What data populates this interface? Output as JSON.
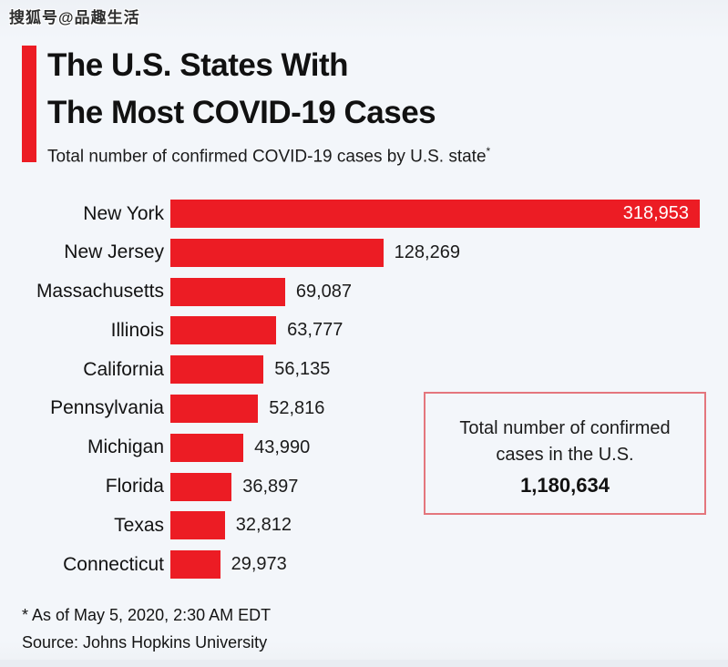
{
  "watermark": "搜狐号@品趣生活",
  "header": {
    "title_line1": "The U.S. States With",
    "title_line2": "The Most COVID-19 Cases",
    "subtitle": "Total number of confirmed COVID-19 cases by U.S. state",
    "subtitle_footnote_marker": "*"
  },
  "chart_data": {
    "type": "bar",
    "orientation": "horizontal",
    "title": "The U.S. States With The Most COVID-19 Cases",
    "subtitle": "Total number of confirmed COVID-19 cases by U.S. state*",
    "categories": [
      "New York",
      "New Jersey",
      "Massachusetts",
      "Illinois",
      "California",
      "Pennsylvania",
      "Michigan",
      "Florida",
      "Texas",
      "Connecticut"
    ],
    "values": [
      318953,
      128269,
      69087,
      63777,
      56135,
      52816,
      43990,
      36897,
      32812,
      29973
    ],
    "value_labels": [
      "318,953",
      "128,269",
      "69,087",
      "63,777",
      "56,135",
      "52,816",
      "43,990",
      "36,897",
      "32,812",
      "29,973"
    ],
    "xlim": [
      0,
      318953
    ],
    "grid": false,
    "legend": false,
    "bar_color": "#ec1c24"
  },
  "info_box": {
    "line1": "Total number of confirmed",
    "line2": "cases in the U.S.",
    "total": "1,180,634"
  },
  "footer": {
    "note": "* As of May 5, 2020, 2:30 AM EDT",
    "source": "Source: Johns Hopkins University"
  },
  "colors": {
    "accent_red": "#ec1c24",
    "background": "#f3f6fa",
    "box_border": "#e4767d",
    "bar_value_inside": "#ffffff",
    "text": "#141414"
  }
}
